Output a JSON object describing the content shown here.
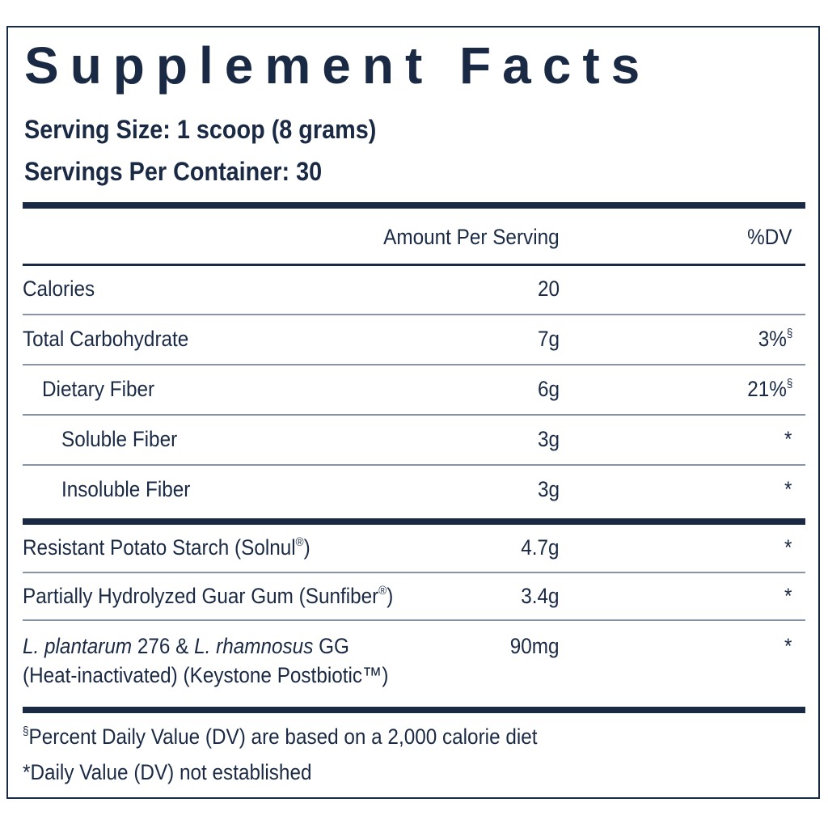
{
  "title": "Supplement Facts",
  "serving_size": "Serving Size: 1 scoop (8 grams)",
  "servings_per_container": "Servings Per Container: 30",
  "header": {
    "amount": "Amount Per Serving",
    "dv": "%DV"
  },
  "rows": [
    {
      "name": "Calories",
      "amount": "20"
    },
    {
      "name": "Total Carbohydrate",
      "amount": "7g",
      "dv": "3%",
      "dv_note": "§"
    },
    {
      "name": "Dietary Fiber",
      "amount": "6g",
      "dv": "21%",
      "dv_note": "§"
    },
    {
      "name": "Soluble Fiber",
      "amount": "3g",
      "dv": "*"
    },
    {
      "name": "Insoluble Fiber",
      "amount": "3g",
      "dv": "*"
    },
    {
      "name": "Resistant Potato Starch (Solnul",
      "name_mark": "®",
      "name_end": ")",
      "amount": "4.7g",
      "dv": "*"
    },
    {
      "name": "Partially Hydrolyzed Guar Gum (Sunfiber",
      "name_mark": "®",
      "name_end": ")",
      "amount": "3.4g",
      "dv": "*"
    },
    {
      "name_parts": [
        "L. plantarum",
        "276 &",
        "L. rhamnosus",
        "GG"
      ],
      "name_line2": "(Heat-inactivated) (Keystone Postbiotic™)",
      "amount": "90mg",
      "dv": "*"
    }
  ],
  "footnotes": [
    {
      "symbol": "§",
      "text": "Percent Daily Value (DV) are based on a 2,000 calorie diet"
    },
    {
      "text": "*Daily Value (DV) not established"
    }
  ]
}
